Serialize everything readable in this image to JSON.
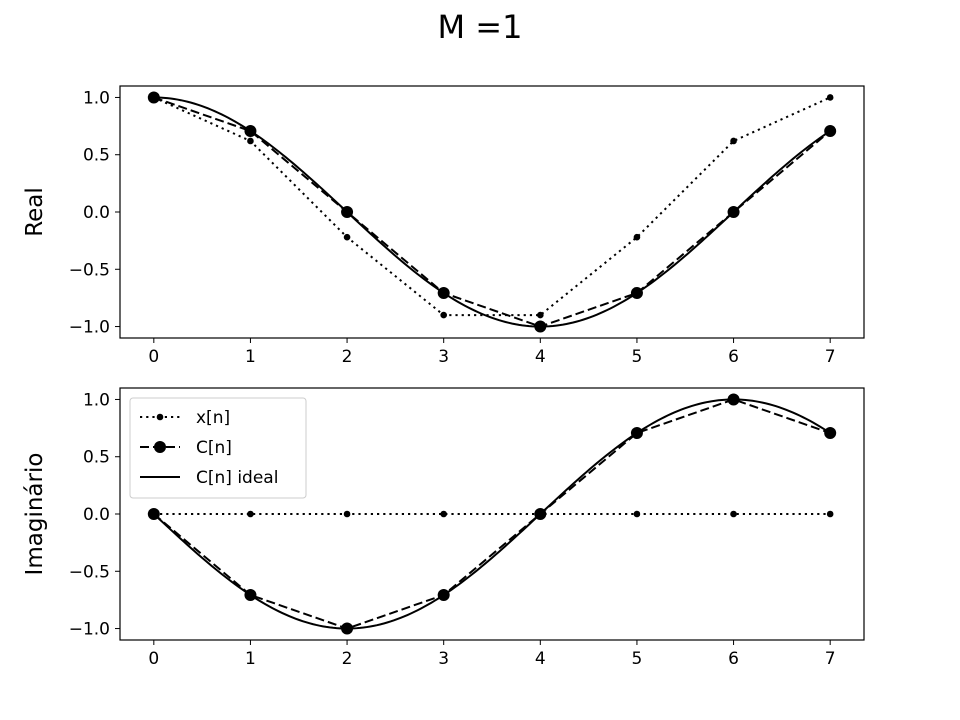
{
  "figure": {
    "title": "M =1"
  },
  "chart_data": [
    {
      "type": "line",
      "ylabel": "Real",
      "xlim": [
        -0.35,
        7.35
      ],
      "ylim": [
        -1.1,
        1.1
      ],
      "xticks": [
        0,
        1,
        2,
        3,
        4,
        5,
        6,
        7
      ],
      "xtick_labels": [
        "0",
        "1",
        "2",
        "3",
        "4",
        "5",
        "6",
        "7"
      ],
      "yticks": [
        1.0,
        0.5,
        0.0,
        -0.5,
        -1.0
      ],
      "ytick_labels": [
        "1.0",
        "0.5",
        "0.0",
        "−0.5",
        "−1.0"
      ],
      "grid": false,
      "legend": null,
      "series": [
        {
          "name": "x[n]",
          "style": "dotted",
          "marker": "small-dot",
          "color": "#000000",
          "x": [
            0,
            1,
            2,
            3,
            4,
            5,
            6,
            7
          ],
          "y": [
            1.0,
            0.62,
            -0.22,
            -0.9,
            -0.9,
            -0.22,
            0.62,
            1.0
          ]
        },
        {
          "name": "C[n]",
          "style": "dashed",
          "marker": "large-dot",
          "color": "#000000",
          "x": [
            0,
            1,
            2,
            3,
            4,
            5,
            6,
            7
          ],
          "y": [
            1.0,
            0.707,
            0.0,
            -0.707,
            -1.0,
            -0.707,
            0.0,
            0.707
          ]
        },
        {
          "name": "C[n] ideal",
          "style": "solid",
          "marker": "none",
          "color": "#000000",
          "function": "cos",
          "x_range": [
            0,
            7
          ]
        }
      ]
    },
    {
      "type": "line",
      "ylabel": "Imaginário",
      "xlim": [
        -0.35,
        7.35
      ],
      "ylim": [
        -1.1,
        1.1
      ],
      "xticks": [
        0,
        1,
        2,
        3,
        4,
        5,
        6,
        7
      ],
      "xtick_labels": [
        "0",
        "1",
        "2",
        "3",
        "4",
        "5",
        "6",
        "7"
      ],
      "yticks": [
        1.0,
        0.5,
        0.0,
        -0.5,
        -1.0
      ],
      "ytick_labels": [
        "1.0",
        "0.5",
        "0.0",
        "−0.5",
        "−1.0"
      ],
      "grid": false,
      "legend": "upper-left",
      "series": [
        {
          "name": "x[n]",
          "style": "dotted",
          "marker": "small-dot",
          "color": "#000000",
          "x": [
            0,
            1,
            2,
            3,
            4,
            5,
            6,
            7
          ],
          "y": [
            0,
            0,
            0,
            0,
            0,
            0,
            0,
            0
          ]
        },
        {
          "name": "C[n]",
          "style": "dashed",
          "marker": "large-dot",
          "color": "#000000",
          "x": [
            0,
            1,
            2,
            3,
            4,
            5,
            6,
            7
          ],
          "y": [
            0.0,
            -0.707,
            -1.0,
            -0.707,
            0.0,
            0.707,
            1.0,
            0.707
          ]
        },
        {
          "name": "C[n] ideal",
          "style": "solid",
          "marker": "none",
          "color": "#000000",
          "function": "-sin",
          "x_range": [
            0,
            7
          ]
        }
      ]
    }
  ]
}
